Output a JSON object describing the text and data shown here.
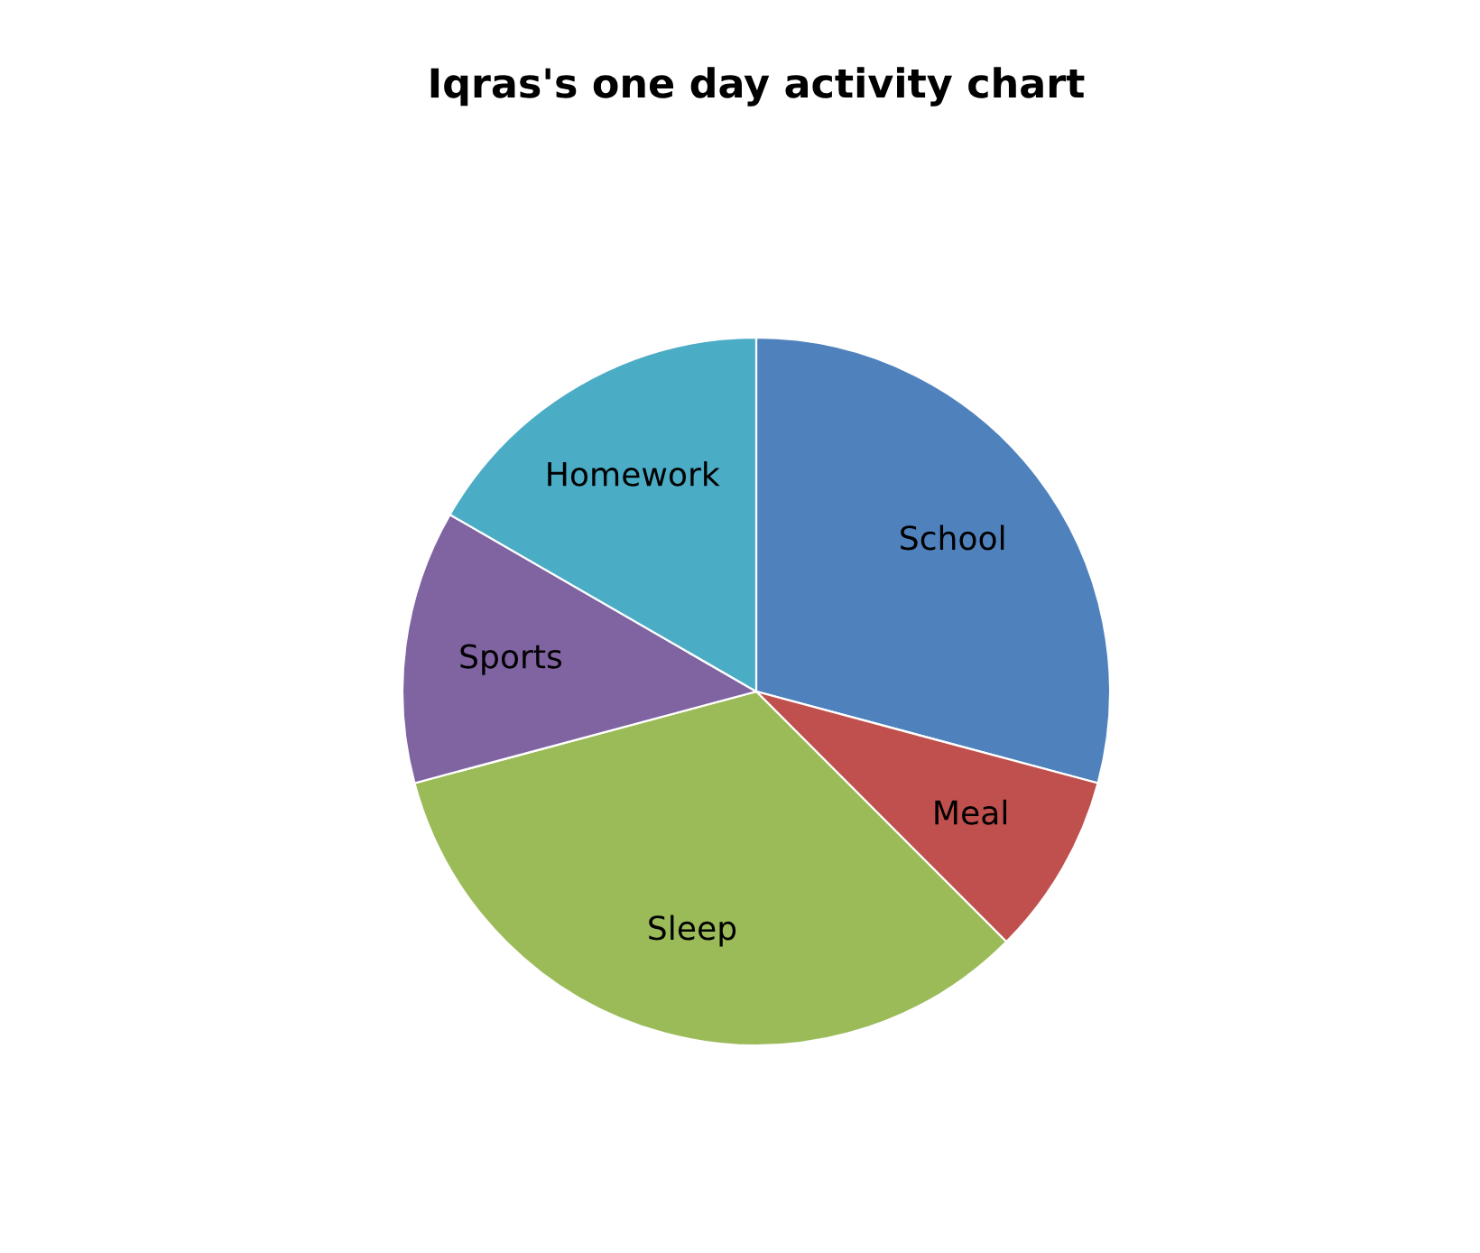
{
  "chart_data": {
    "type": "pie",
    "title": "Iqras's one day activity chart",
    "categories": [
      "School",
      "Meal",
      "Sleep",
      "Sports",
      "Homework"
    ],
    "values": [
      29.17,
      8.33,
      33.33,
      12.5,
      16.67
    ],
    "colors": [
      "#4f81bd",
      "#c0504d",
      "#9bbb59",
      "#8064a2",
      "#4bacc6"
    ]
  }
}
